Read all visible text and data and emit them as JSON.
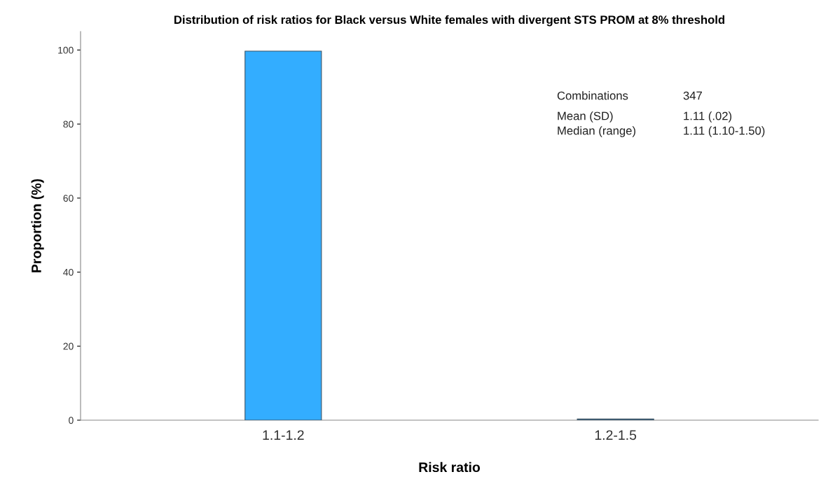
{
  "chart_data": {
    "type": "bar",
    "title": "Distribution of risk ratios for Black versus White females with divergent STS PROM at 8% threshold",
    "xlabel": "Risk ratio",
    "ylabel": "Proportion (%)",
    "categories": [
      "1.1-1.2",
      "1.2-1.5"
    ],
    "values": [
      99.7,
      0.3
    ],
    "colors": [
      "#33adff",
      "#3d6a8c"
    ],
    "ylim": [
      0,
      105
    ],
    "yticks": [
      0,
      20,
      40,
      60,
      80,
      100
    ],
    "grid": false,
    "legend": false,
    "annotations": [
      "Combinations",
      "347",
      "Mean (SD)",
      "1.11 (.02)",
      "Median (range)",
      "1.11 (1.10-1.50)"
    ]
  }
}
